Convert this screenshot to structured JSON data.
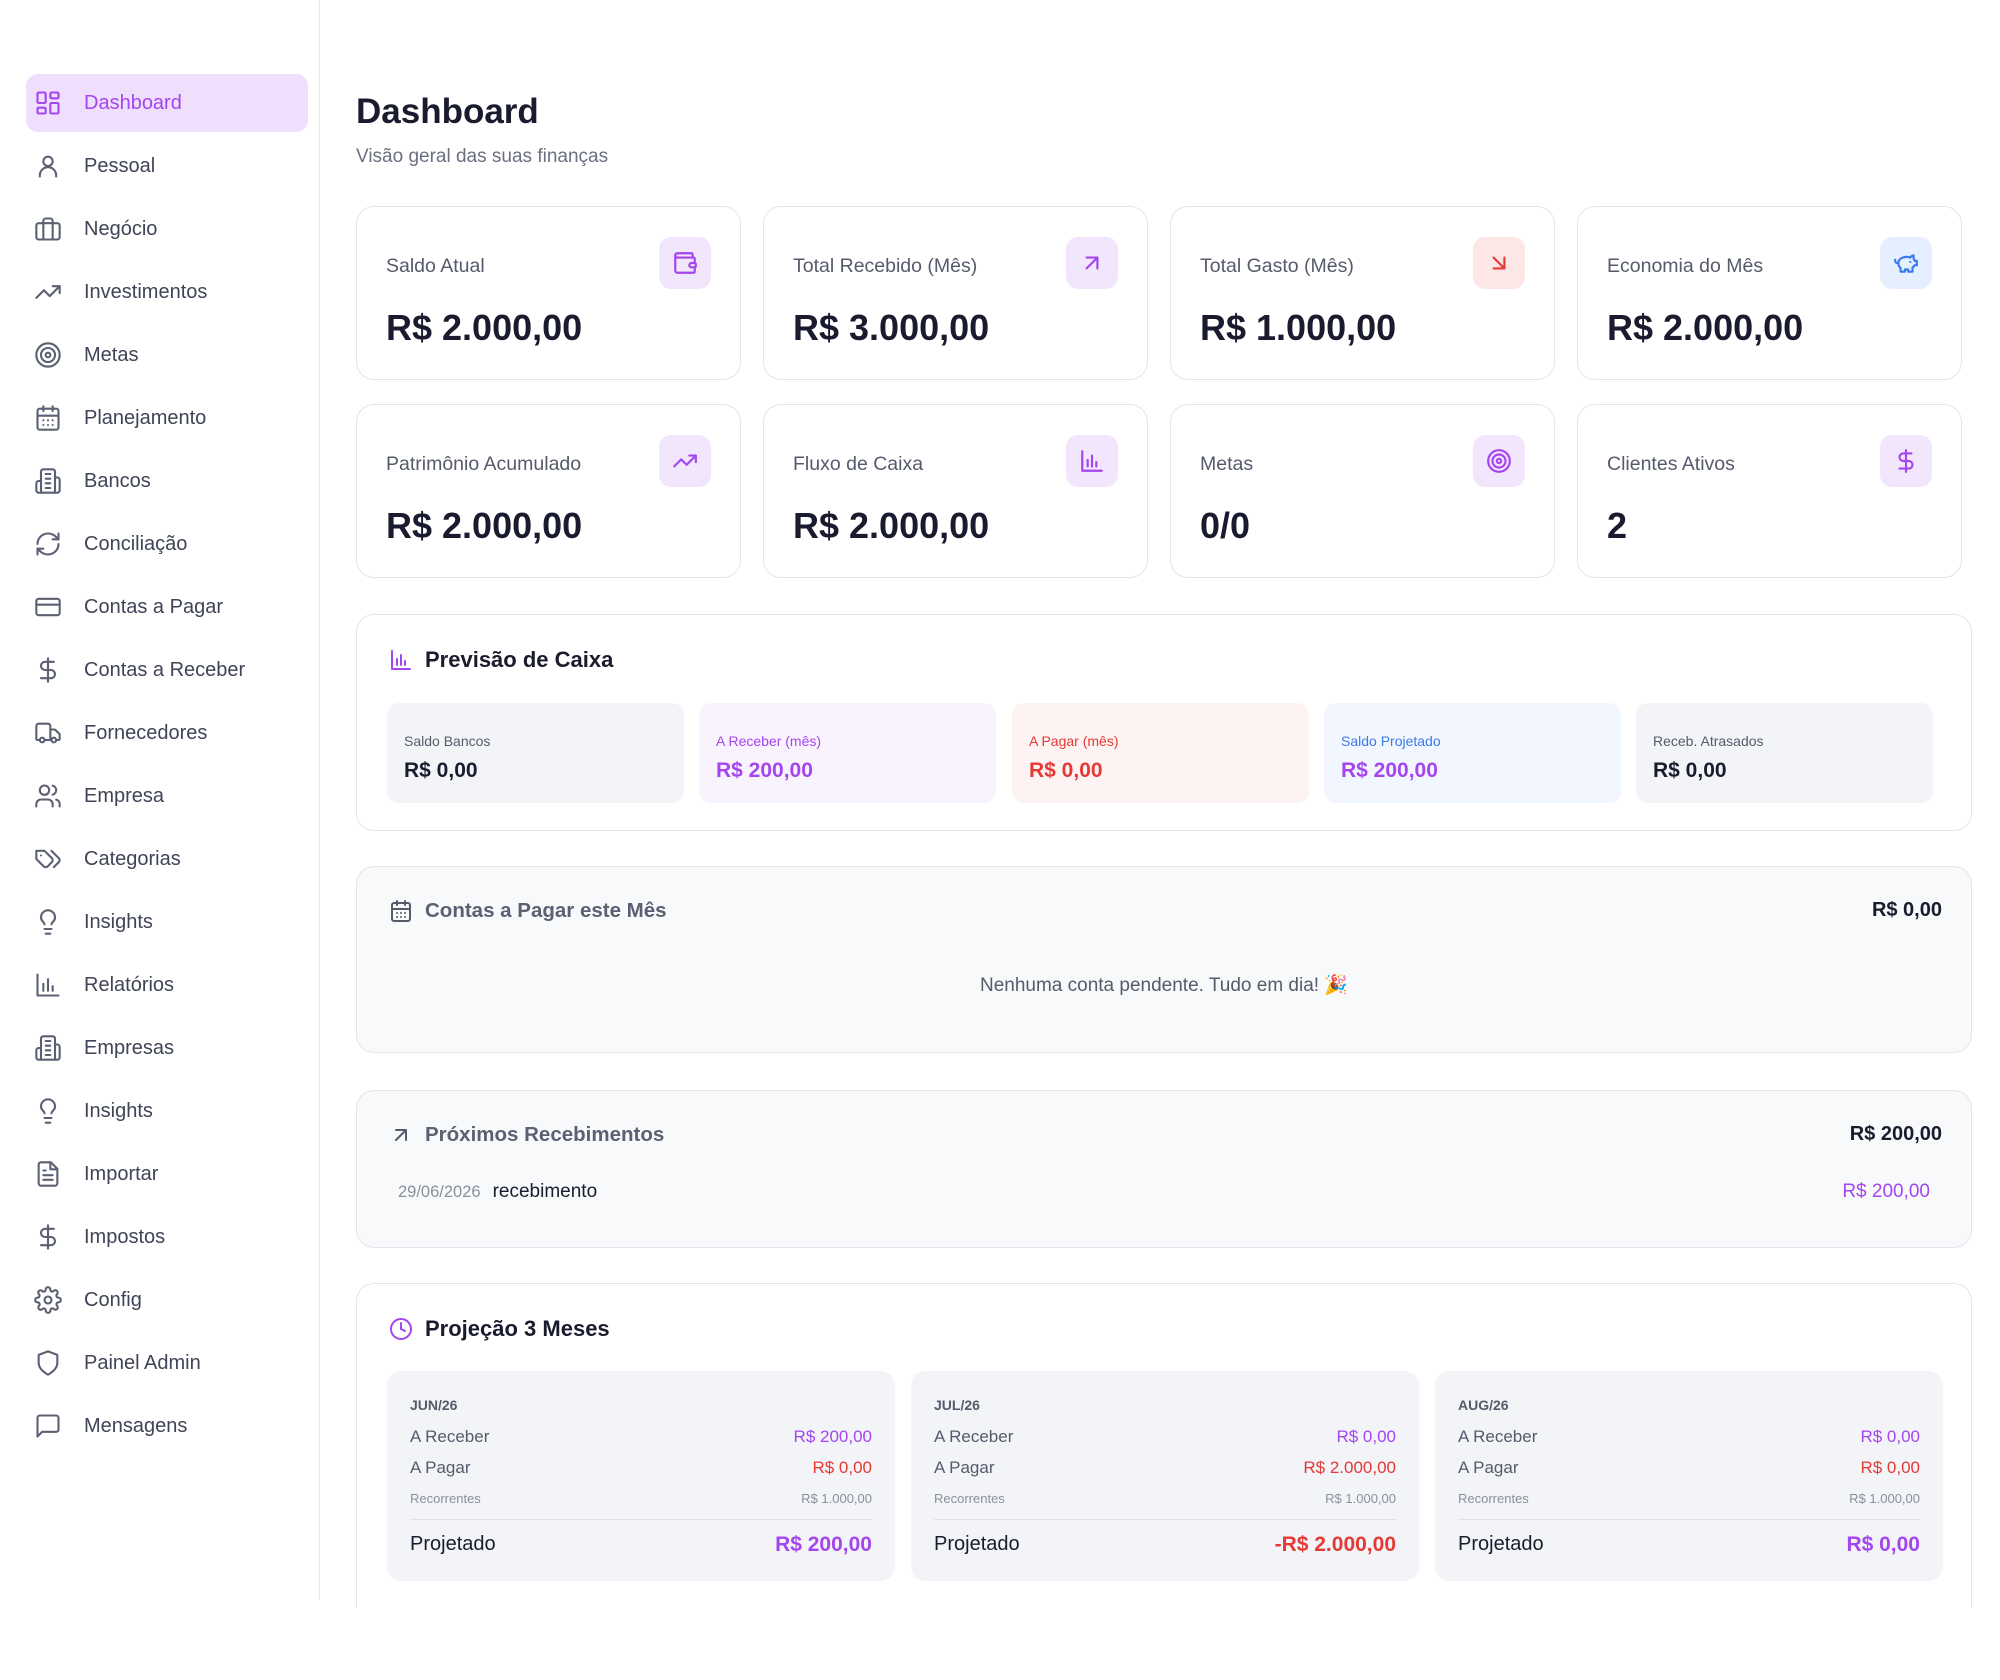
{
  "colors": {
    "accent": "#a445f0",
    "negative": "#e53935",
    "info": "#3a7be8"
  },
  "sidebar": {
    "items": [
      {
        "label": "Dashboard",
        "icon": "dashboard-icon",
        "active": true
      },
      {
        "label": "Pessoal",
        "icon": "user-icon"
      },
      {
        "label": "Negócio",
        "icon": "briefcase-icon"
      },
      {
        "label": "Investimentos",
        "icon": "trending-up-icon"
      },
      {
        "label": "Metas",
        "icon": "target-icon"
      },
      {
        "label": "Planejamento",
        "icon": "calendar-icon"
      },
      {
        "label": "Bancos",
        "icon": "building-icon"
      },
      {
        "label": "Conciliação",
        "icon": "refresh-icon"
      },
      {
        "label": "Contas a Pagar",
        "icon": "credit-card-icon"
      },
      {
        "label": "Contas a Receber",
        "icon": "dollar-icon"
      },
      {
        "label": "Fornecedores",
        "icon": "truck-icon"
      },
      {
        "label": "Empresa",
        "icon": "users-icon"
      },
      {
        "label": "Categorias",
        "icon": "tags-icon"
      },
      {
        "label": "Insights",
        "icon": "lightbulb-icon"
      },
      {
        "label": "Relatórios",
        "icon": "bar-chart-icon"
      },
      {
        "label": "Empresas",
        "icon": "building-icon"
      },
      {
        "label": "Insights",
        "icon": "lightbulb-icon"
      },
      {
        "label": "Importar",
        "icon": "file-text-icon"
      },
      {
        "label": "Impostos",
        "icon": "dollar-icon"
      },
      {
        "label": "Config",
        "icon": "gear-icon"
      },
      {
        "label": "Painel Admin",
        "icon": "shield-icon"
      },
      {
        "label": "Mensagens",
        "icon": "message-icon"
      }
    ]
  },
  "header": {
    "title": "Dashboard",
    "subtitle": "Visão geral das suas finanças"
  },
  "stats": [
    {
      "label": "Saldo Atual",
      "value": "R$ 2.000,00",
      "icon": "wallet-icon"
    },
    {
      "label": "Total Recebido (Mês)",
      "value": "R$ 3.000,00",
      "icon": "arrow-up-right-icon"
    },
    {
      "label": "Total Gasto (Mês)",
      "value": "R$ 1.000,00",
      "icon": "arrow-down-right-icon"
    },
    {
      "label": "Economia do Mês",
      "value": "R$ 2.000,00",
      "icon": "piggy-bank-icon"
    },
    {
      "label": "Patrimônio Acumulado",
      "value": "R$ 2.000,00",
      "icon": "trending-up-icon"
    },
    {
      "label": "Fluxo de Caixa",
      "value": "R$ 2.000,00",
      "icon": "bar-chart-icon"
    },
    {
      "label": "Metas",
      "value": "0/0",
      "icon": "target-icon"
    },
    {
      "label": "Clientes Ativos",
      "value": "2",
      "icon": "dollar-icon"
    }
  ],
  "forecast": {
    "title": "Previsão de Caixa",
    "boxes": [
      {
        "label": "Saldo Bancos",
        "value": "R$ 0,00"
      },
      {
        "label": "A Receber (mês)",
        "value": "R$ 200,00"
      },
      {
        "label": "A Pagar (mês)",
        "value": "R$ 0,00"
      },
      {
        "label": "Saldo Projetado",
        "value": "R$ 200,00"
      },
      {
        "label": "Receb. Atrasados",
        "value": "R$ 0,00"
      }
    ]
  },
  "payables": {
    "title": "Contas a Pagar este Mês",
    "total": "R$ 0,00",
    "empty_message": "Nenhuma conta pendente. Tudo em dia! 🎉"
  },
  "receivables": {
    "title": "Próximos Recebimentos",
    "total": "R$ 200,00",
    "items": [
      {
        "date": "29/06/2026",
        "description": "recebimento",
        "amount": "R$ 200,00"
      }
    ]
  },
  "projection": {
    "title": "Projeção 3 Meses",
    "labels": {
      "receber": "A Receber",
      "pagar": "A Pagar",
      "recorrentes": "Recorrentes",
      "projetado": "Projetado"
    },
    "months": [
      {
        "month": "JUN/26",
        "receber": "R$ 200,00",
        "pagar": "R$ 0,00",
        "recorrentes": "R$ 1.000,00",
        "projetado": "R$ 200,00"
      },
      {
        "month": "JUL/26",
        "receber": "R$ 0,00",
        "pagar": "R$ 2.000,00",
        "recorrentes": "R$ 1.000,00",
        "projetado": "-R$ 2.000,00"
      },
      {
        "month": "AUG/26",
        "receber": "R$ 0,00",
        "pagar": "R$ 0,00",
        "recorrentes": "R$ 1.000,00",
        "projetado": "R$ 0,00"
      }
    ]
  }
}
